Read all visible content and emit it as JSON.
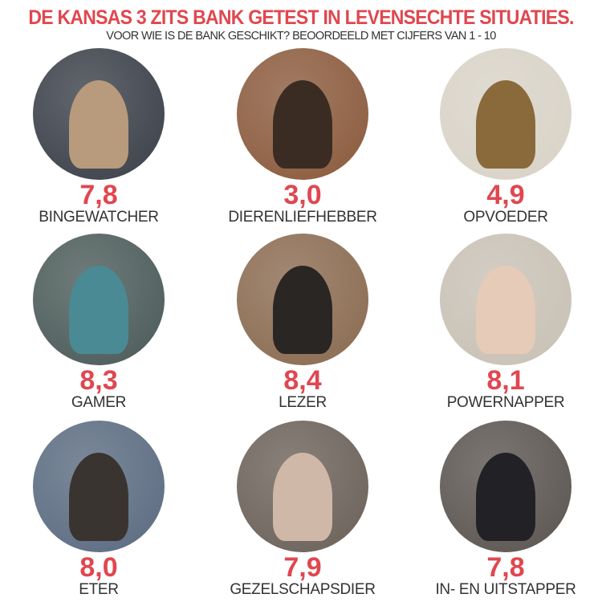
{
  "title": "DE KANSAS 3 ZITS BANK GETEST IN LEVENSECHTE SITUATIES.",
  "subtitle": "VOOR WIE IS DE BANK GESCHIKT? BEOORDEELD MET CIJFERS VAN 1 - 10",
  "accent_color": "#e0474f",
  "items": [
    {
      "score": "7,8",
      "label": "BINGEWATCHER",
      "bg": "#3a3f48",
      "fig": "#b89a7c"
    },
    {
      "score": "3,0",
      "label": "DIERENLIEFHEBBER",
      "bg": "#8a5a3c",
      "fig": "#3a2c22"
    },
    {
      "score": "4,9",
      "label": "OPVOEDER",
      "bg": "#d8d2c6",
      "fig": "#8a6a3a"
    },
    {
      "score": "8,3",
      "label": "GAMER",
      "bg": "#4a5a58",
      "fig": "#4a8a94"
    },
    {
      "score": "8,4",
      "label": "LEZER",
      "bg": "#8a6a50",
      "fig": "#2a2624"
    },
    {
      "score": "8,1",
      "label": "POWERNAPPER",
      "bg": "#c8c0b4",
      "fig": "#e6cbb8"
    },
    {
      "score": "8,0",
      "label": "ETER",
      "bg": "#5a6a80",
      "fig": "#3a3430"
    },
    {
      "score": "7,9",
      "label": "GEZELSCHAPSDIER",
      "bg": "#6a6058",
      "fig": "#d0b8a8"
    },
    {
      "score": "7,8",
      "label": "IN- EN UITSTAPPER",
      "bg": "#5a5450",
      "fig": "#222226"
    }
  ]
}
